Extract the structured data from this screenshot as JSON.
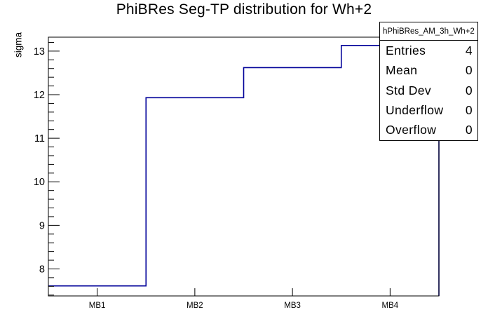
{
  "chart_data": {
    "type": "bar",
    "subtype": "root-step-histogram",
    "title": "PhiBRes Seg-TP distribution for Wh+2",
    "xlabel": "",
    "ylabel": "sigma",
    "categories": [
      "MB1",
      "MB2",
      "MB3",
      "MB4"
    ],
    "values": [
      7.61,
      11.93,
      12.62,
      13.13
    ],
    "ylim": [
      7.38,
      13.32
    ],
    "yticks": [
      8,
      9,
      10,
      11,
      12,
      13
    ],
    "y_minor_step": 0.2,
    "grid": false,
    "legend_position": "none",
    "line_color": "#000099",
    "frame_color": "#000000",
    "background_color": "#ffffff"
  },
  "stats": {
    "header": "hPhiBRes_AM_3h_Wh+2",
    "rows": [
      {
        "label": "Entries",
        "value": "4"
      },
      {
        "label": "Mean",
        "value": "0"
      },
      {
        "label": "Std Dev",
        "value": "0"
      },
      {
        "label": "Underflow",
        "value": "0"
      },
      {
        "label": "Overflow",
        "value": "0"
      }
    ]
  }
}
